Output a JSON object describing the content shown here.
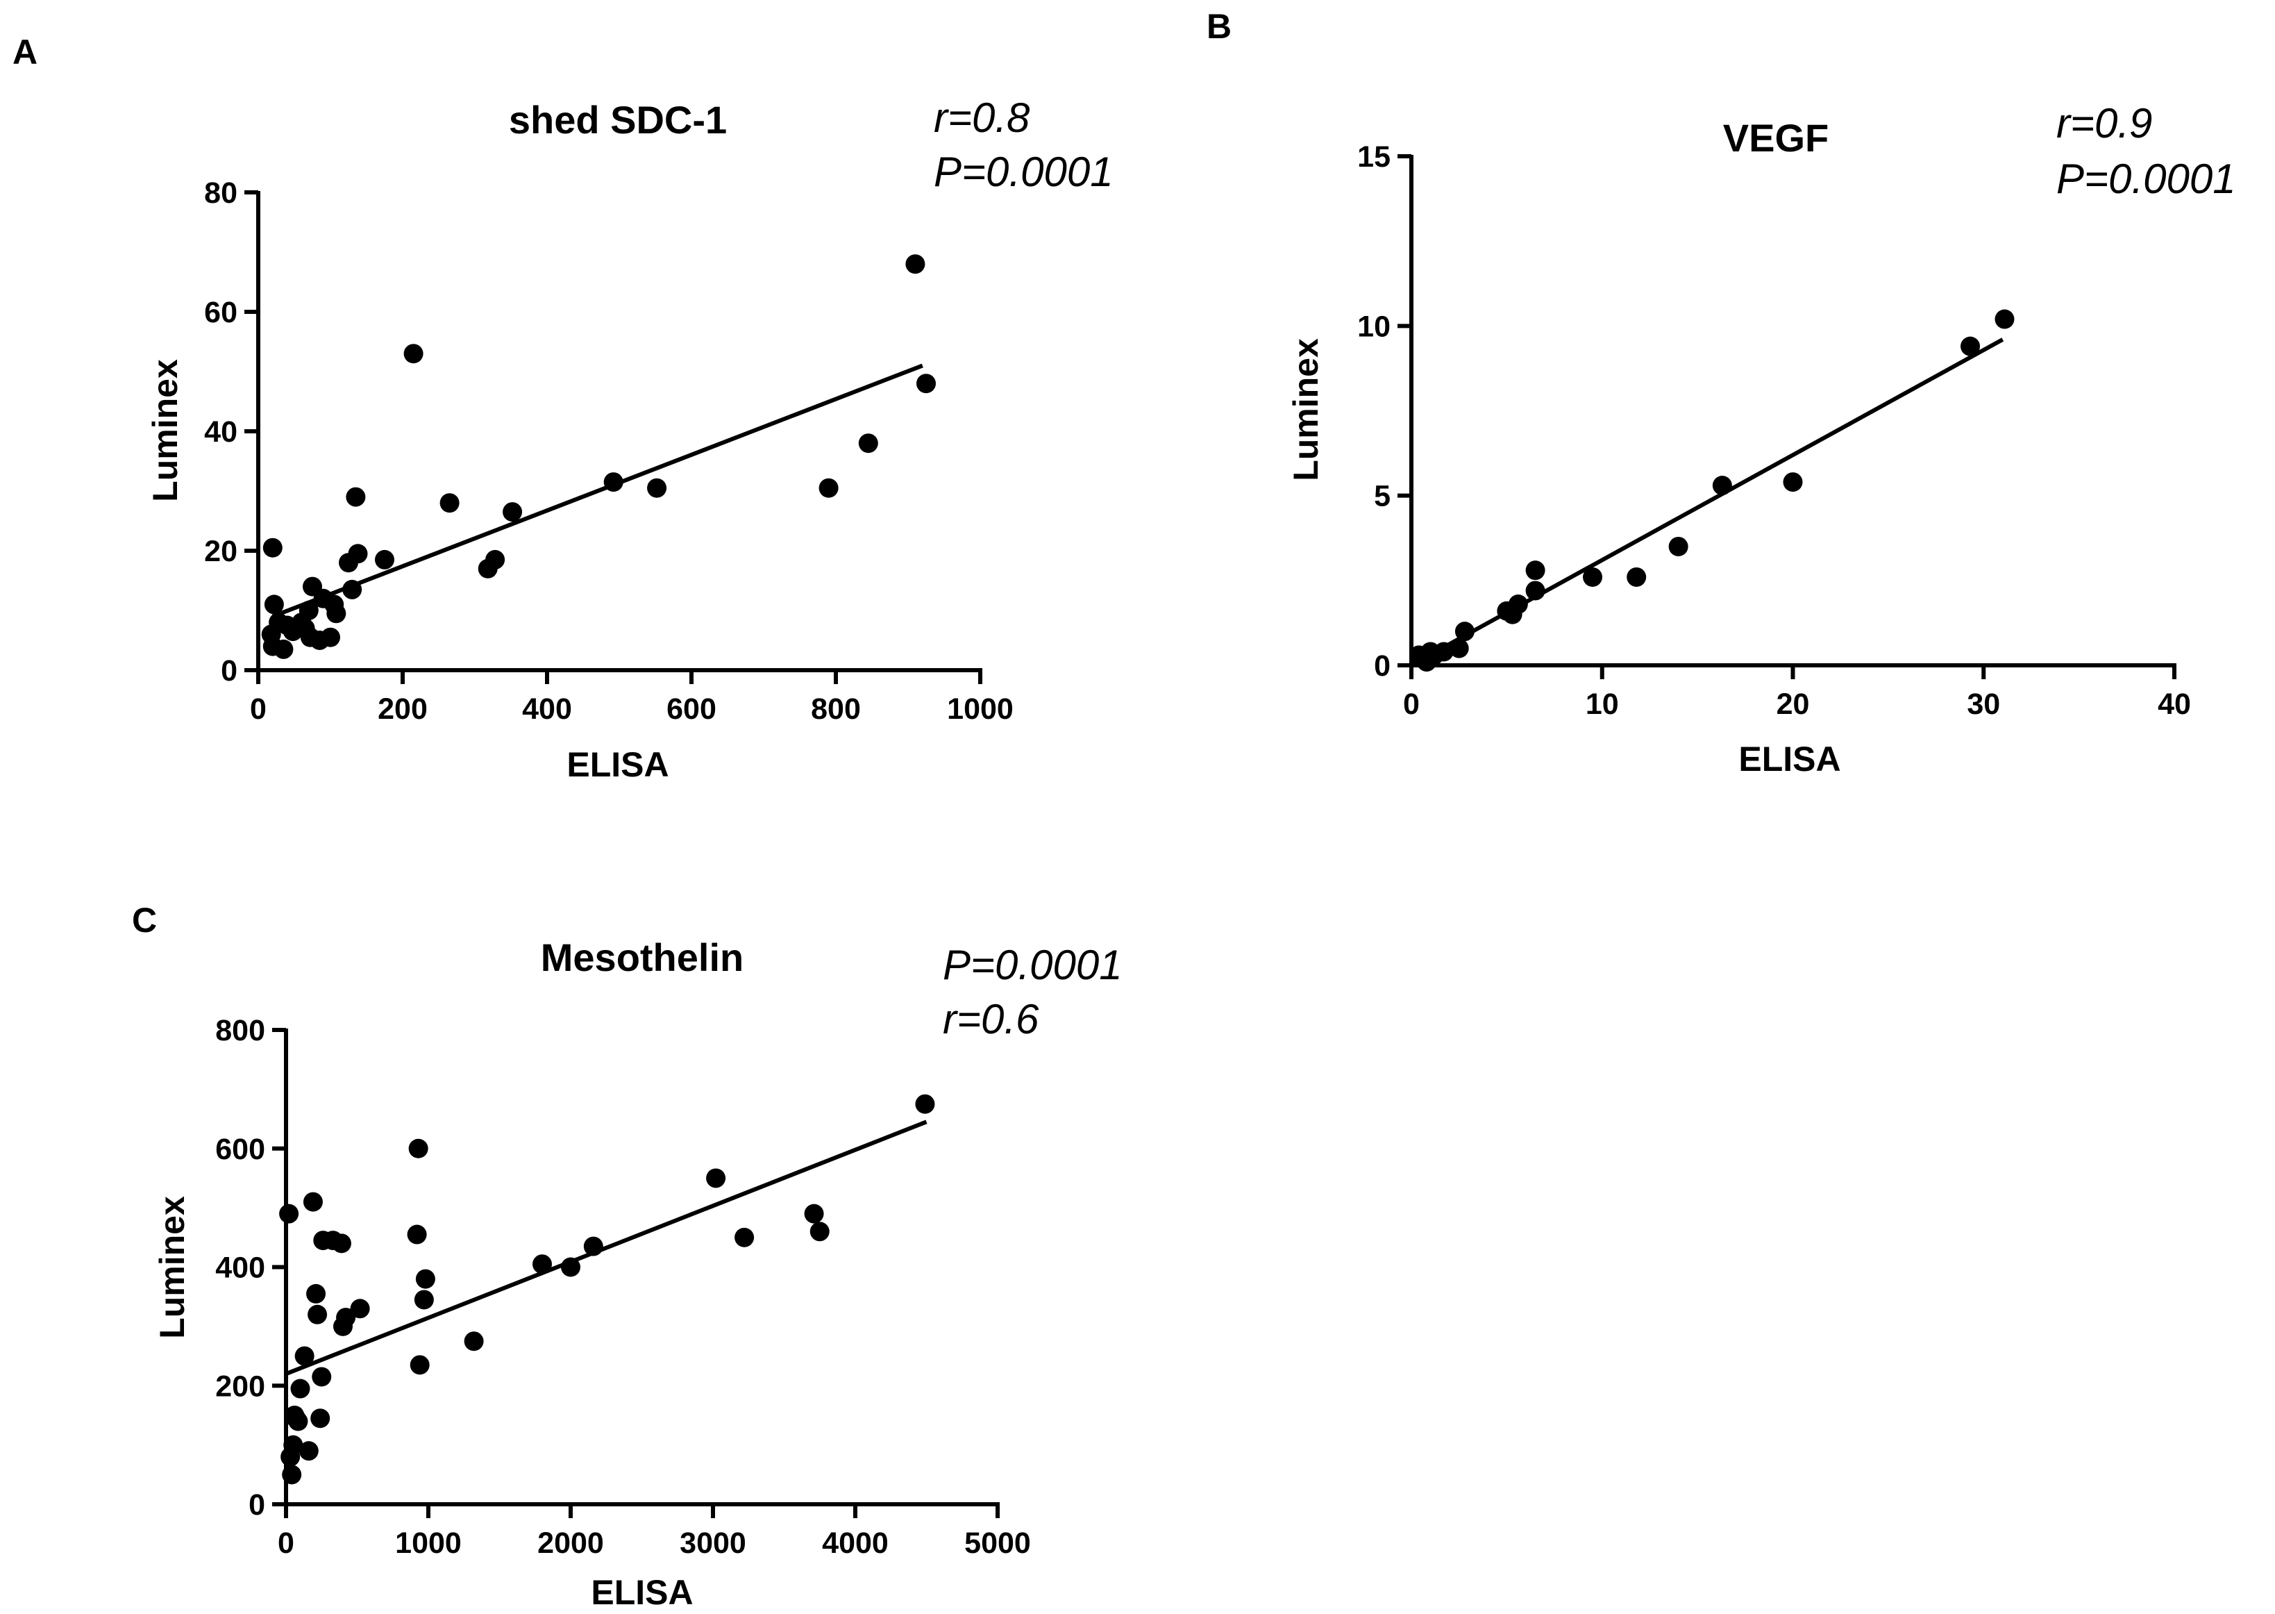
{
  "chart_data": [
    {
      "panel": "A",
      "type": "scatter",
      "title": "shed SDC-1",
      "xlabel": "ELISA",
      "ylabel": "Luminex",
      "xlim": [
        0,
        1000
      ],
      "ylim": [
        0,
        80
      ],
      "xticks": [
        "0",
        "200",
        "400",
        "600",
        "800",
        "1000"
      ],
      "yticks": [
        "0",
        "20",
        "40",
        "60",
        "80"
      ],
      "stats": [
        "r=0.8",
        "P=0.0001"
      ],
      "fit": {
        "x": [
          20,
          920
        ],
        "y": [
          9,
          51
        ]
      },
      "points": [
        [
          20,
          20.5
        ],
        [
          22,
          11
        ],
        [
          18,
          6
        ],
        [
          20,
          4
        ],
        [
          28,
          8
        ],
        [
          35,
          3.5
        ],
        [
          40,
          7.5
        ],
        [
          48,
          6.5
        ],
        [
          60,
          8
        ],
        [
          65,
          7
        ],
        [
          70,
          10
        ],
        [
          72,
          5.5
        ],
        [
          75,
          14
        ],
        [
          85,
          5
        ],
        [
          90,
          12
        ],
        [
          100,
          5.5
        ],
        [
          105,
          11
        ],
        [
          108,
          9.5
        ],
        [
          125,
          18
        ],
        [
          130,
          13.5
        ],
        [
          135,
          29
        ],
        [
          138,
          19.5
        ],
        [
          175,
          18.5
        ],
        [
          215,
          53
        ],
        [
          265,
          28
        ],
        [
          318,
          17
        ],
        [
          328,
          18.5
        ],
        [
          352,
          26.5
        ],
        [
          492,
          31.5
        ],
        [
          552,
          30.5
        ],
        [
          790,
          30.5
        ],
        [
          845,
          38
        ],
        [
          910,
          68
        ],
        [
          925,
          48
        ]
      ]
    },
    {
      "panel": "B",
      "type": "scatter",
      "title": "VEGF",
      "xlabel": "ELISA",
      "ylabel": "Luminex",
      "xlim": [
        0,
        40
      ],
      "ylim": [
        0,
        15
      ],
      "xticks": [
        "0",
        "10",
        "20",
        "30",
        "40"
      ],
      "yticks": [
        "0",
        "5",
        "10",
        "15"
      ],
      "stats": [
        "r=0.9",
        "P=0.0001"
      ],
      "fit": {
        "x": [
          0.3,
          31
        ],
        "y": [
          0.1,
          9.6
        ]
      },
      "points": [
        [
          0.4,
          0.3
        ],
        [
          0.6,
          0.2
        ],
        [
          0.8,
          0.1
        ],
        [
          1.0,
          0.4
        ],
        [
          1.2,
          0.3
        ],
        [
          1.7,
          0.4
        ],
        [
          2.5,
          0.5
        ],
        [
          2.8,
          1.0
        ],
        [
          5.0,
          1.6
        ],
        [
          5.3,
          1.5
        ],
        [
          5.6,
          1.8
        ],
        [
          6.5,
          2.2
        ],
        [
          6.5,
          2.8
        ],
        [
          9.5,
          2.6
        ],
        [
          11.8,
          2.6
        ],
        [
          14.0,
          3.5
        ],
        [
          16.3,
          5.3
        ],
        [
          20.0,
          5.4
        ],
        [
          29.3,
          9.4
        ],
        [
          31.1,
          10.2
        ]
      ]
    },
    {
      "panel": "C",
      "type": "scatter",
      "title": "Mesothelin",
      "xlabel": "ELISA",
      "ylabel": "Luminex",
      "xlim": [
        0,
        5000
      ],
      "ylim": [
        0,
        800
      ],
      "xticks": [
        "0",
        "1000",
        "2000",
        "3000",
        "4000",
        "5000"
      ],
      "yticks": [
        "0",
        "200",
        "400",
        "600",
        "800"
      ],
      "stats": [
        "P=0.0001",
        "r=0.6"
      ],
      "fit": {
        "x": [
          0,
          4500
        ],
        "y": [
          220,
          645
        ]
      },
      "points": [
        [
          20,
          490
        ],
        [
          30,
          80
        ],
        [
          40,
          50
        ],
        [
          50,
          100
        ],
        [
          60,
          150
        ],
        [
          70,
          145
        ],
        [
          85,
          140
        ],
        [
          100,
          195
        ],
        [
          130,
          250
        ],
        [
          160,
          90
        ],
        [
          190,
          510
        ],
        [
          210,
          355
        ],
        [
          220,
          320
        ],
        [
          240,
          145
        ],
        [
          250,
          215
        ],
        [
          260,
          445
        ],
        [
          330,
          445
        ],
        [
          390,
          440
        ],
        [
          400,
          300
        ],
        [
          420,
          315
        ],
        [
          520,
          330
        ],
        [
          920,
          455
        ],
        [
          930,
          600
        ],
        [
          940,
          235
        ],
        [
          970,
          345
        ],
        [
          980,
          380
        ],
        [
          1320,
          275
        ],
        [
          1800,
          405
        ],
        [
          2000,
          400
        ],
        [
          2160,
          435
        ],
        [
          3020,
          550
        ],
        [
          3220,
          450
        ],
        [
          3710,
          490
        ],
        [
          3750,
          460
        ],
        [
          4490,
          675
        ]
      ]
    }
  ]
}
